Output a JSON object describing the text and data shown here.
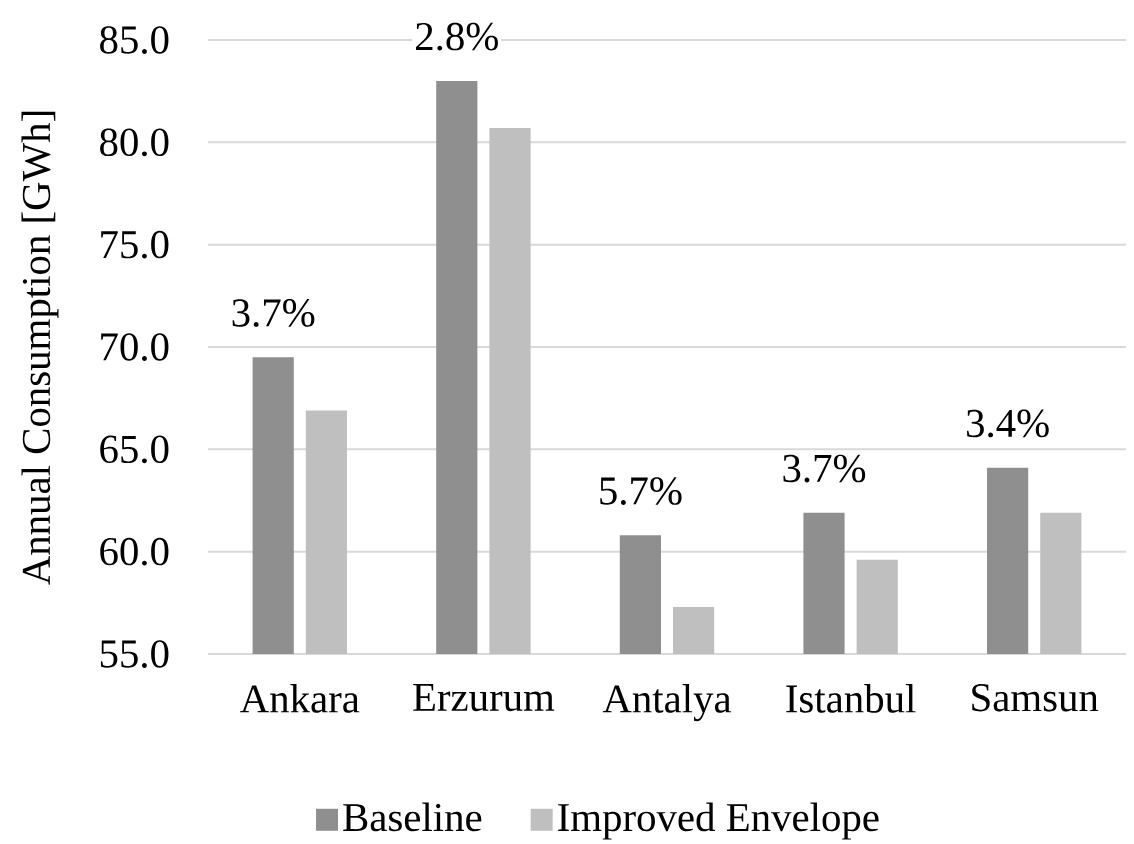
{
  "chart_data": {
    "type": "bar",
    "ylabel": "Annual Consumption [GWh]",
    "categories": [
      "Ankara",
      "Erzurum",
      "Antalya",
      "Istanbul",
      "Samsun"
    ],
    "series": [
      {
        "name": "Baseline",
        "color": "#8f8f8f",
        "values": [
          69.5,
          83.0,
          60.8,
          61.9,
          64.1
        ]
      },
      {
        "name": "Improved Envelope",
        "color": "#bfbfbf",
        "values": [
          66.9,
          80.7,
          57.3,
          59.6,
          61.9
        ]
      }
    ],
    "ylim": [
      55,
      85
    ],
    "yticks": [
      {
        "value": 55,
        "label": "55.0"
      },
      {
        "value": 60,
        "label": "60.0"
      },
      {
        "value": 65,
        "label": "65.0"
      },
      {
        "value": 70,
        "label": "70.0"
      },
      {
        "value": 75,
        "label": "75.0"
      },
      {
        "value": 80,
        "label": "80.0"
      },
      {
        "value": 85,
        "label": "85.0"
      }
    ],
    "grid": "y",
    "legend": "bottom",
    "annotations": [
      {
        "text": "3.7%",
        "x": "Ankara",
        "y": 69.5
      },
      {
        "text": "2.8%",
        "x": "Erzurum",
        "y": 83.0
      },
      {
        "text": "5.7%",
        "x": "Antalya",
        "y": 60.8
      },
      {
        "text": "3.7%",
        "x": "Istanbul",
        "y": 61.9
      },
      {
        "text": "3.4%",
        "x": "Samsun",
        "y": 64.1
      }
    ]
  }
}
